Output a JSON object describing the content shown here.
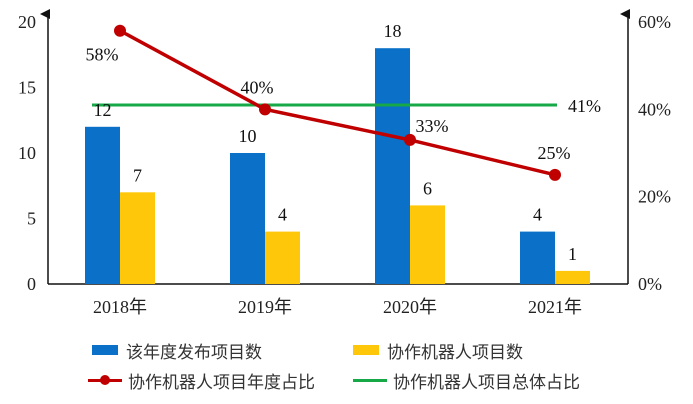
{
  "chart_data": {
    "type": "bar",
    "categories": [
      "2018年",
      "2019年",
      "2020年",
      "2021年"
    ],
    "series": [
      {
        "name": "该年度发布项目数",
        "kind": "bar",
        "axis": "left",
        "color": "#0a70c8",
        "values": [
          12,
          10,
          18,
          4
        ],
        "labels": [
          "12",
          "10",
          "18",
          "4"
        ]
      },
      {
        "name": "协作机器人项目数",
        "kind": "bar",
        "axis": "left",
        "color": "#ffc70a",
        "values": [
          7,
          4,
          6,
          1
        ],
        "labels": [
          "7",
          "4",
          "6",
          "1"
        ]
      },
      {
        "name": "协作机器人项目年度占比",
        "kind": "line",
        "axis": "right",
        "color": "#c00000",
        "values": [
          58,
          40,
          33,
          25
        ],
        "labels": [
          "58%",
          "40%",
          "33%",
          "25%"
        ]
      },
      {
        "name": "协作机器人项目总体占比",
        "kind": "line",
        "axis": "right",
        "color": "#17a848",
        "values": [
          41,
          41,
          41,
          41
        ],
        "labels": [
          "41%"
        ]
      }
    ],
    "y_left": {
      "range": [
        0,
        20
      ],
      "ticks": [
        "0",
        "5",
        "10",
        "15",
        "20"
      ]
    },
    "y_right": {
      "range": [
        0,
        60
      ],
      "ticks": [
        "0%",
        "20%",
        "40%",
        "60%"
      ]
    },
    "legend_position": "bottom",
    "grid": false
  }
}
